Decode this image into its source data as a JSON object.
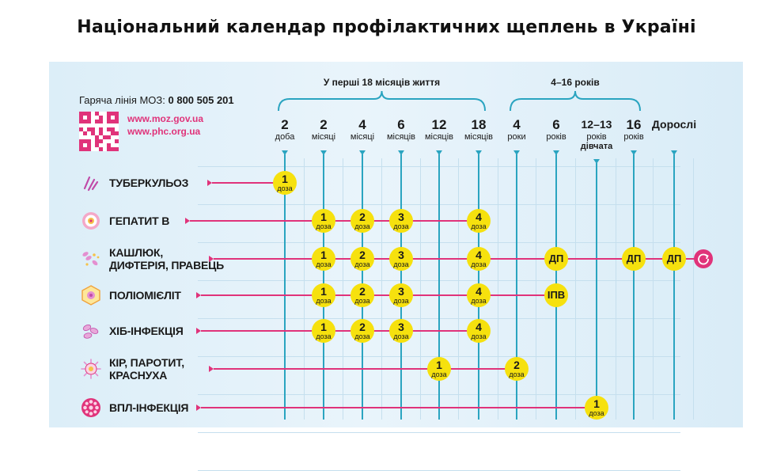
{
  "title": "Національний календар профілактичних щеплень в Україні",
  "hotline": {
    "label": "Гаряча лінія МОЗ:",
    "number": "0 800 505 201"
  },
  "websites": [
    "www.moz.gov.ua",
    "www.phc.org.ua"
  ],
  "periods": [
    {
      "label": "У перші 18 місяців життя",
      "from": 0,
      "to": 5
    },
    {
      "label": "4–16 років",
      "from": 6,
      "to": 9
    }
  ],
  "ages": [
    {
      "num": "2",
      "unit": "доба"
    },
    {
      "num": "2",
      "unit": "місяці"
    },
    {
      "num": "4",
      "unit": "місяці"
    },
    {
      "num": "6",
      "unit": "місяців"
    },
    {
      "num": "12",
      "unit": "місяців"
    },
    {
      "num": "18",
      "unit": "місяців"
    },
    {
      "num": "4",
      "unit": "роки"
    },
    {
      "num": "6",
      "unit": "років"
    },
    {
      "num": "12–13",
      "unit": "років",
      "unit2": "дівчата"
    },
    {
      "num": "16",
      "unit": "років"
    },
    {
      "num": "Дорослі",
      "unit": ""
    }
  ],
  "vaccines": [
    {
      "name": [
        "ТУБЕРКУЛЬОЗ"
      ],
      "icon": "tuberculosis-icon",
      "doses": [
        {
          "age": 0,
          "n": "1",
          "u": "доза"
        }
      ]
    },
    {
      "name": [
        "ГЕПАТИТ В"
      ],
      "icon": "hepatitis-b-icon",
      "doses": [
        {
          "age": 1,
          "n": "1",
          "u": "доза"
        },
        {
          "age": 2,
          "n": "2",
          "u": "доза"
        },
        {
          "age": 3,
          "n": "3",
          "u": "доза"
        },
        {
          "age": 5,
          "n": "4",
          "u": "доза"
        }
      ]
    },
    {
      "name": [
        "КАШЛЮК,",
        "ДИФТЕРІЯ, ПРАВЕЦЬ"
      ],
      "icon": "pertussis-icon",
      "repeat": true,
      "doses": [
        {
          "age": 1,
          "n": "1",
          "u": "доза"
        },
        {
          "age": 2,
          "n": "2",
          "u": "доза"
        },
        {
          "age": 3,
          "n": "3",
          "u": "доза"
        },
        {
          "age": 5,
          "n": "4",
          "u": "доза"
        },
        {
          "age": 7,
          "n": "ДП",
          "u": ""
        },
        {
          "age": 9,
          "n": "ДП",
          "u": ""
        },
        {
          "age": 10,
          "n": "ДП",
          "u": ""
        }
      ]
    },
    {
      "name": [
        "ПОЛІОМІЄЛІТ"
      ],
      "icon": "polio-icon",
      "doses": [
        {
          "age": 1,
          "n": "1",
          "u": "доза"
        },
        {
          "age": 2,
          "n": "2",
          "u": "доза"
        },
        {
          "age": 3,
          "n": "3",
          "u": "доза"
        },
        {
          "age": 5,
          "n": "4",
          "u": "доза"
        },
        {
          "age": 7,
          "n": "ІПВ",
          "u": ""
        }
      ]
    },
    {
      "name": [
        "ХІБ-ІНФЕКЦІЯ"
      ],
      "icon": "hib-icon",
      "doses": [
        {
          "age": 1,
          "n": "1",
          "u": "доза"
        },
        {
          "age": 2,
          "n": "2",
          "u": "доза"
        },
        {
          "age": 3,
          "n": "3",
          "u": "доза"
        },
        {
          "age": 5,
          "n": "4",
          "u": "доза"
        }
      ]
    },
    {
      "name": [
        "КІР, ПАРОТИТ,",
        "КРАСНУХА"
      ],
      "icon": "measles-icon",
      "doses": [
        {
          "age": 4,
          "n": "1",
          "u": "доза"
        },
        {
          "age": 6,
          "n": "2",
          "u": "доза"
        }
      ]
    },
    {
      "name": [
        "ВПЛ-ІНФЕКЦІЯ"
      ],
      "icon": "hpv-icon",
      "doses": [
        {
          "age": 8,
          "n": "1",
          "u": "доза"
        }
      ]
    }
  ],
  "colors": {
    "line": "#e0337a",
    "timeline": "#2aa4c0",
    "dose": "#f6e10e",
    "brand": "#e0337a"
  }
}
